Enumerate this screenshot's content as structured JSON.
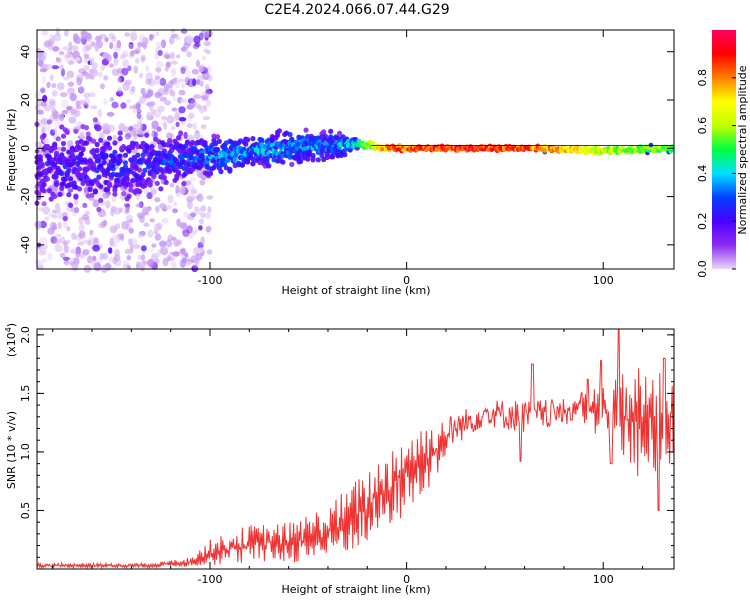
{
  "figure": {
    "title": "C2E4.2024.066.07.44.G29"
  },
  "chart_data": [
    {
      "type": "heatmap",
      "title": "C2E4.2024.066.07.44.G29",
      "xlabel": "Height of straight line (km)",
      "ylabel": "Frequency (Hz)",
      "xlim": [
        -188,
        136
      ],
      "ylim": [
        -50,
        49
      ],
      "x_ticks": [
        -100,
        0,
        100
      ],
      "y_ticks": [
        -40,
        -20,
        0,
        20,
        40
      ],
      "colorbar": {
        "label": "Normalized spectral amplitude",
        "range": [
          0.0,
          1.0
        ],
        "ticks": [
          0.0,
          0.2,
          0.4,
          0.6,
          0.8
        ],
        "colors": [
          "#e8d6f5",
          "#8e2bf0",
          "#4a00ff",
          "#0040ff",
          "#00e0ff",
          "#00ff40",
          "#c0ff00",
          "#ffff00",
          "#ff8000",
          "#ff0000",
          "#ff0060"
        ]
      },
      "ridge": [
        {
          "x": -188,
          "f": -8,
          "amp": 0.22,
          "spread": 24
        },
        {
          "x": -160,
          "f": -8,
          "amp": 0.25,
          "spread": 22
        },
        {
          "x": -130,
          "f": -6,
          "amp": 0.28,
          "spread": 16
        },
        {
          "x": -110,
          "f": -4,
          "amp": 0.32,
          "spread": 12
        },
        {
          "x": -95,
          "f": -3,
          "amp": 0.4,
          "spread": 10
        },
        {
          "x": -80,
          "f": -1,
          "amp": 0.42,
          "spread": 9
        },
        {
          "x": -60,
          "f": 0,
          "amp": 0.4,
          "spread": 9
        },
        {
          "x": -40,
          "f": 1,
          "amp": 0.38,
          "spread": 9
        },
        {
          "x": -25,
          "f": 2,
          "amp": 0.5,
          "spread": 3
        },
        {
          "x": -10,
          "f": 0,
          "amp": 0.85,
          "spread": 2
        },
        {
          "x": 20,
          "f": 0,
          "amp": 0.95,
          "spread": 1.5
        },
        {
          "x": 60,
          "f": 0,
          "amp": 0.9,
          "spread": 1.5
        },
        {
          "x": 100,
          "f": -1,
          "amp": 0.65,
          "spread": 2
        },
        {
          "x": 136,
          "f": 0,
          "amp": 0.55,
          "spread": 2.5
        }
      ]
    },
    {
      "type": "line",
      "xlabel": "Height of straight line (km)",
      "ylabel": "SNR (10 * v/v)",
      "y_multiplier": "(x10",
      "y_multiplier_exp": "4",
      "y_multiplier_close": ")",
      "xlim": [
        -188,
        136
      ],
      "ylim": [
        0,
        2.05
      ],
      "x_ticks": [
        -100,
        0,
        100
      ],
      "y_ticks": [
        0.5,
        1.0,
        1.5,
        2.0
      ],
      "color": "#ee3333",
      "envelope": [
        {
          "x": -188,
          "lo": 0.01,
          "hi": 0.05
        },
        {
          "x": -130,
          "lo": 0.01,
          "hi": 0.05
        },
        {
          "x": -110,
          "lo": 0.02,
          "hi": 0.1
        },
        {
          "x": -100,
          "lo": 0.03,
          "hi": 0.25
        },
        {
          "x": -80,
          "lo": 0.04,
          "hi": 0.38
        },
        {
          "x": -60,
          "lo": 0.05,
          "hi": 0.4
        },
        {
          "x": -40,
          "lo": 0.06,
          "hi": 0.55
        },
        {
          "x": -20,
          "lo": 0.2,
          "hi": 0.85
        },
        {
          "x": 0,
          "lo": 0.45,
          "hi": 1.2
        },
        {
          "x": 20,
          "lo": 0.85,
          "hi": 1.3
        },
        {
          "x": 40,
          "lo": 1.1,
          "hi": 1.45
        },
        {
          "x": 60,
          "lo": 1.0,
          "hi": 1.45
        },
        {
          "x": 80,
          "lo": 1.1,
          "hi": 1.45
        },
        {
          "x": 100,
          "lo": 1.15,
          "hi": 1.6
        },
        {
          "x": 120,
          "lo": 0.7,
          "hi": 1.75
        },
        {
          "x": 136,
          "lo": 0.9,
          "hi": 1.7
        }
      ],
      "peaks": [
        {
          "x": 64,
          "y": 1.75
        },
        {
          "x": 92,
          "y": 1.62
        },
        {
          "x": 99,
          "y": 1.78
        },
        {
          "x": 108,
          "y": 2.05
        },
        {
          "x": 131,
          "y": 1.8
        }
      ],
      "dips": [
        {
          "x": 58,
          "y": 0.92
        },
        {
          "x": 104,
          "y": 0.9
        },
        {
          "x": 128,
          "y": 0.5
        }
      ]
    }
  ]
}
